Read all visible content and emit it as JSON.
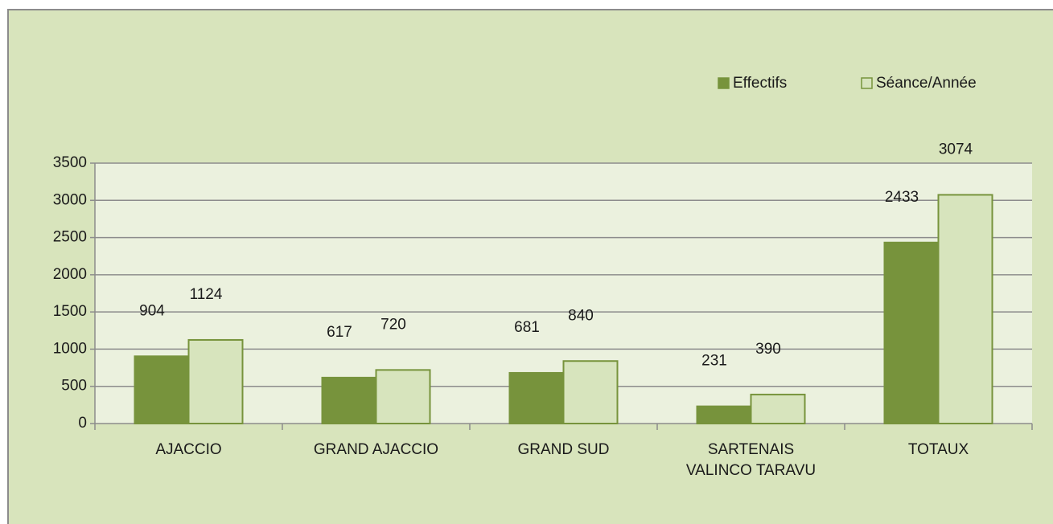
{
  "chart_data": {
    "type": "bar",
    "categories": [
      "AJACCIO",
      "GRAND AJACCIO",
      "GRAND SUD",
      "SARTENAIS VALINCO TARAVU",
      "TOTAUX"
    ],
    "series": [
      {
        "name": "Effectifs",
        "color": "#77933c",
        "values": [
          904,
          617,
          681,
          231,
          2433
        ]
      },
      {
        "name": "Séance/Année",
        "color": "#d7e4bd",
        "values": [
          1124,
          720,
          840,
          390,
          3074
        ]
      }
    ],
    "ylim": [
      0,
      3500
    ],
    "yticks": [
      0,
      500,
      1000,
      1500,
      2000,
      2500,
      3000,
      3500
    ],
    "grid": true,
    "legend": "top-right"
  }
}
